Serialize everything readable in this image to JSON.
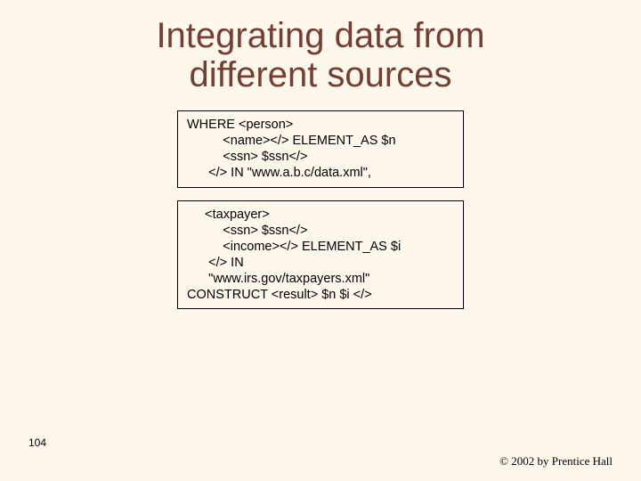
{
  "title_line1": "Integrating data from",
  "title_line2": "different sources",
  "box1_line1": "WHERE <person>",
  "box1_line2": "          <name></> ELEMENT_AS $n",
  "box1_line3": "          <ssn> $ssn</>",
  "box1_line4": "      </> IN \"www.a.b.c/data.xml\",",
  "box2_line1": "     <taxpayer>",
  "box2_line2": "          <ssn> $ssn</>",
  "box2_line3": "          <income></> ELEMENT_AS $i",
  "box2_line4": "      </> IN",
  "box2_line5": "      \"www.irs.gov/taxpayers.xml\"",
  "box2_line6": "CONSTRUCT <result> $n $i </>",
  "page_number": "104",
  "copyright": "© 2002 by Prentice Hall",
  "colors": {
    "background": "#fef7ec",
    "title": "#763e32",
    "border": "#000000",
    "text": "#000000"
  }
}
